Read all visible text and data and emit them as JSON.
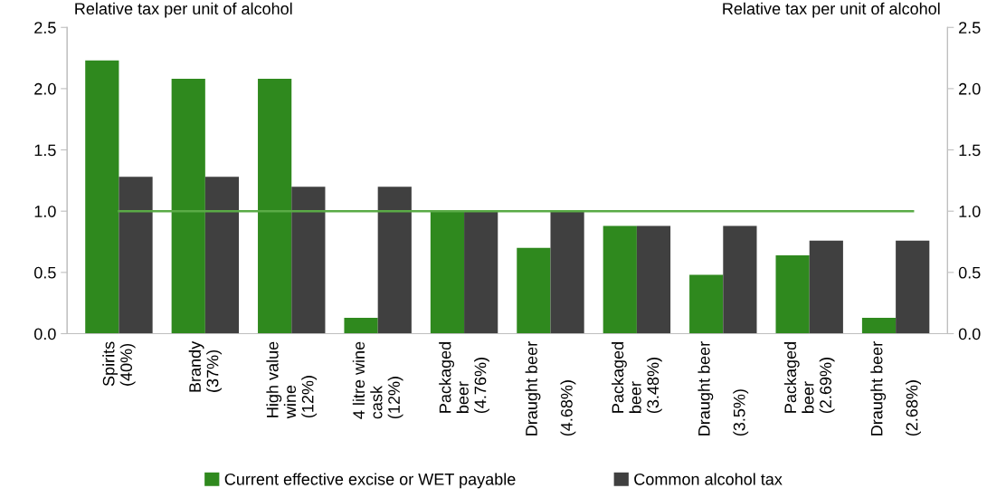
{
  "chart_data": {
    "type": "bar",
    "ylabel": "Relative tax per unit of alcohol",
    "y2label": "Relative tax per unit of alcohol",
    "categories": [
      "Spirits\n(40%)",
      "Brandy\n(37%)",
      "High value\nwine\n(12%)",
      "4 litre wine\ncask\n(12%)",
      "Packaged\nbeer\n(4.76%)",
      "Draught beer\n\n(4.68%)",
      "Packaged\nbeer\n(3.48%)",
      "Draught beer\n\n(3.5%)",
      "Packaged\nbeer\n(2.69%)",
      "Draught beer\n\n(2.68%)"
    ],
    "series": [
      {
        "name": "Current effective excise or WET payable",
        "color": "#2f891e",
        "values": [
          2.23,
          2.08,
          2.08,
          0.13,
          1.0,
          0.7,
          0.88,
          0.48,
          0.64,
          0.13
        ]
      },
      {
        "name": "Common alcohol tax",
        "color": "#404040",
        "values": [
          1.28,
          1.28,
          1.2,
          1.2,
          1.0,
          1.0,
          0.88,
          0.88,
          0.76,
          0.76
        ]
      }
    ],
    "ylim": [
      0,
      2.5
    ],
    "yticks": [
      {
        "value": 0,
        "label": "0.0"
      },
      0.5,
      {
        "value": 1,
        "label": "1.0"
      },
      1.5,
      {
        "value": 2,
        "label": "2.0"
      },
      2.5
    ],
    "y2lim": [
      0,
      2.5
    ],
    "y2ticks": [
      {
        "value": 0,
        "label": "0.0"
      },
      0.5,
      {
        "value": 1,
        "label": "1.0"
      },
      1.5,
      {
        "value": 2,
        "label": "2.0"
      },
      2.5
    ],
    "ref_lines": [
      {
        "axis": "y",
        "value": 1.0,
        "color": "#5aab46"
      }
    ],
    "grid": false,
    "legend": "bottom"
  }
}
